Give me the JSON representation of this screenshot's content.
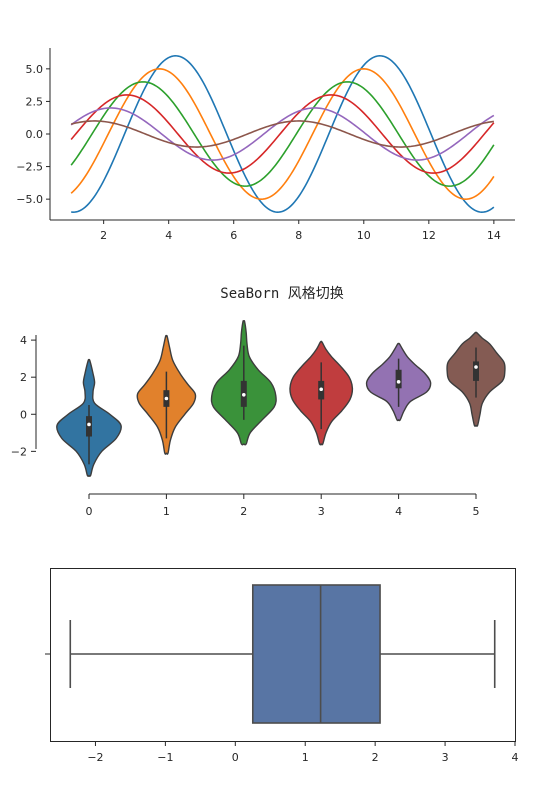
{
  "colors": {
    "axis": "#262626",
    "palette": [
      "#1f77b4",
      "#ff7f0e",
      "#2ca02c",
      "#d62728",
      "#9467bd",
      "#8c564b"
    ],
    "violin_palette": [
      "#3274a1",
      "#e1812c",
      "#3a923a",
      "#c03d3e",
      "#9372b2",
      "#845b53"
    ],
    "box_fill": "#5875a4",
    "box_line": "#4d4d4d"
  },
  "chart_data": [
    {
      "type": "line",
      "title": "",
      "xlim": [
        0.35,
        14.65
      ],
      "ylim": [
        -6.6,
        6.6
      ],
      "xticks": [
        2,
        4,
        6,
        8,
        10,
        12,
        14
      ],
      "yticks": [
        5.0,
        2.5,
        0.0,
        -2.5,
        -5.0
      ],
      "ytick_labels": [
        "5.0",
        "2.5",
        "0.0",
        "−2.5",
        "−5.0"
      ],
      "grid": false,
      "despine": [
        "top",
        "right"
      ],
      "x_range": [
        1,
        14
      ],
      "formula": "y = sin(x + 0.5*i) * (7 - i) * flip, i = 1..6",
      "series": [
        {
          "amplitude": 6,
          "phase": 0.5
        },
        {
          "amplitude": 5,
          "phase": 1.0
        },
        {
          "amplitude": 4,
          "phase": 1.5
        },
        {
          "amplitude": 3,
          "phase": 2.0
        },
        {
          "amplitude": 2,
          "phase": 2.5
        },
        {
          "amplitude": 1,
          "phase": 3.0
        }
      ],
      "flip": -1
    },
    {
      "type": "violin",
      "title": "SeaBorn 风格切换",
      "xticks": [
        0,
        1,
        2,
        3,
        4,
        5
      ],
      "yticks": [
        4,
        2,
        0,
        -2
      ],
      "ytick_labels": [
        "4",
        "2",
        "0",
        "−2"
      ],
      "ylim": [
        -4.3,
        5.3
      ],
      "despine": [
        "top",
        "right"
      ],
      "offset_axes": true,
      "groups": [
        {
          "category": 0,
          "min": -3.3,
          "max": 2.9,
          "q1": -1.2,
          "median": -0.55,
          "q3": -0.1,
          "whisker": [
            -2.7,
            0.5
          ],
          "profile": [
            [
              -3.3,
              0.02
            ],
            [
              -2.7,
              0.06
            ],
            [
              -2.0,
              0.16
            ],
            [
              -1.3,
              0.34
            ],
            [
              -0.6,
              0.4
            ],
            [
              0.0,
              0.26
            ],
            [
              0.6,
              0.07
            ],
            [
              1.2,
              0.05
            ],
            [
              1.7,
              0.07
            ],
            [
              2.2,
              0.05
            ],
            [
              2.9,
              0.01
            ]
          ]
        },
        {
          "category": 1,
          "min": -2.1,
          "max": 4.2,
          "q1": 0.4,
          "median": 0.85,
          "q3": 1.3,
          "whisker": [
            -1.3,
            2.3
          ],
          "profile": [
            [
              -2.1,
              0.02
            ],
            [
              -1.4,
              0.05
            ],
            [
              -0.7,
              0.11
            ],
            [
              0.0,
              0.23
            ],
            [
              0.6,
              0.34
            ],
            [
              1.1,
              0.36
            ],
            [
              1.6,
              0.27
            ],
            [
              2.2,
              0.17
            ],
            [
              2.9,
              0.08
            ],
            [
              3.6,
              0.04
            ],
            [
              4.2,
              0.01
            ]
          ]
        },
        {
          "category": 2,
          "min": -1.6,
          "max": 5.0,
          "q1": 0.4,
          "median": 1.05,
          "q3": 1.8,
          "whisker": [
            -0.3,
            3.7
          ],
          "profile": [
            [
              -1.6,
              0.03
            ],
            [
              -1.0,
              0.08
            ],
            [
              -0.3,
              0.23
            ],
            [
              0.4,
              0.38
            ],
            [
              1.0,
              0.4
            ],
            [
              1.7,
              0.34
            ],
            [
              2.4,
              0.18
            ],
            [
              3.1,
              0.07
            ],
            [
              3.8,
              0.04
            ],
            [
              4.4,
              0.03
            ],
            [
              5.0,
              0.01
            ]
          ]
        },
        {
          "category": 3,
          "min": -1.6,
          "max": 3.9,
          "q1": 0.8,
          "median": 1.35,
          "q3": 1.8,
          "whisker": [
            -0.8,
            2.8
          ],
          "profile": [
            [
              -1.6,
              0.02
            ],
            [
              -1.0,
              0.06
            ],
            [
              -0.4,
              0.13
            ],
            [
              0.2,
              0.26
            ],
            [
              0.8,
              0.36
            ],
            [
              1.4,
              0.39
            ],
            [
              2.0,
              0.35
            ],
            [
              2.6,
              0.24
            ],
            [
              3.1,
              0.13
            ],
            [
              3.5,
              0.06
            ],
            [
              3.9,
              0.01
            ]
          ]
        },
        {
          "category": 4,
          "min": -0.3,
          "max": 3.8,
          "q1": 1.4,
          "median": 1.75,
          "q3": 2.4,
          "whisker": [
            0.4,
            3.0
          ],
          "profile": [
            [
              -0.3,
              0.02
            ],
            [
              0.2,
              0.07
            ],
            [
              0.7,
              0.15
            ],
            [
              1.2,
              0.35
            ],
            [
              1.7,
              0.4
            ],
            [
              2.2,
              0.33
            ],
            [
              2.7,
              0.2
            ],
            [
              3.1,
              0.11
            ],
            [
              3.5,
              0.05
            ],
            [
              3.8,
              0.01
            ]
          ]
        },
        {
          "category": 5,
          "min": -0.6,
          "max": 4.4,
          "q1": 1.8,
          "median": 2.55,
          "q3": 2.85,
          "whisker": [
            0.9,
            3.6
          ],
          "profile": [
            [
              -0.6,
              0.02
            ],
            [
              0.0,
              0.05
            ],
            [
              0.6,
              0.08
            ],
            [
              1.2,
              0.17
            ],
            [
              1.8,
              0.33
            ],
            [
              2.3,
              0.36
            ],
            [
              2.8,
              0.35
            ],
            [
              3.3,
              0.26
            ],
            [
              3.8,
              0.17
            ],
            [
              4.1,
              0.08
            ],
            [
              4.4,
              0.01
            ]
          ]
        }
      ]
    },
    {
      "type": "box",
      "title": "",
      "orientation": "horizontal",
      "xlim": [
        -2.65,
        4.0
      ],
      "xticks": [
        -2,
        -1,
        0,
        1,
        2,
        3,
        4
      ],
      "xtick_labels": [
        "−2",
        "−1",
        "0",
        "1",
        "2",
        "3",
        "4"
      ],
      "whisker_low": -2.36,
      "q1": 0.25,
      "median": 1.22,
      "q3": 2.07,
      "whisker_high": 3.71,
      "despine": []
    }
  ]
}
